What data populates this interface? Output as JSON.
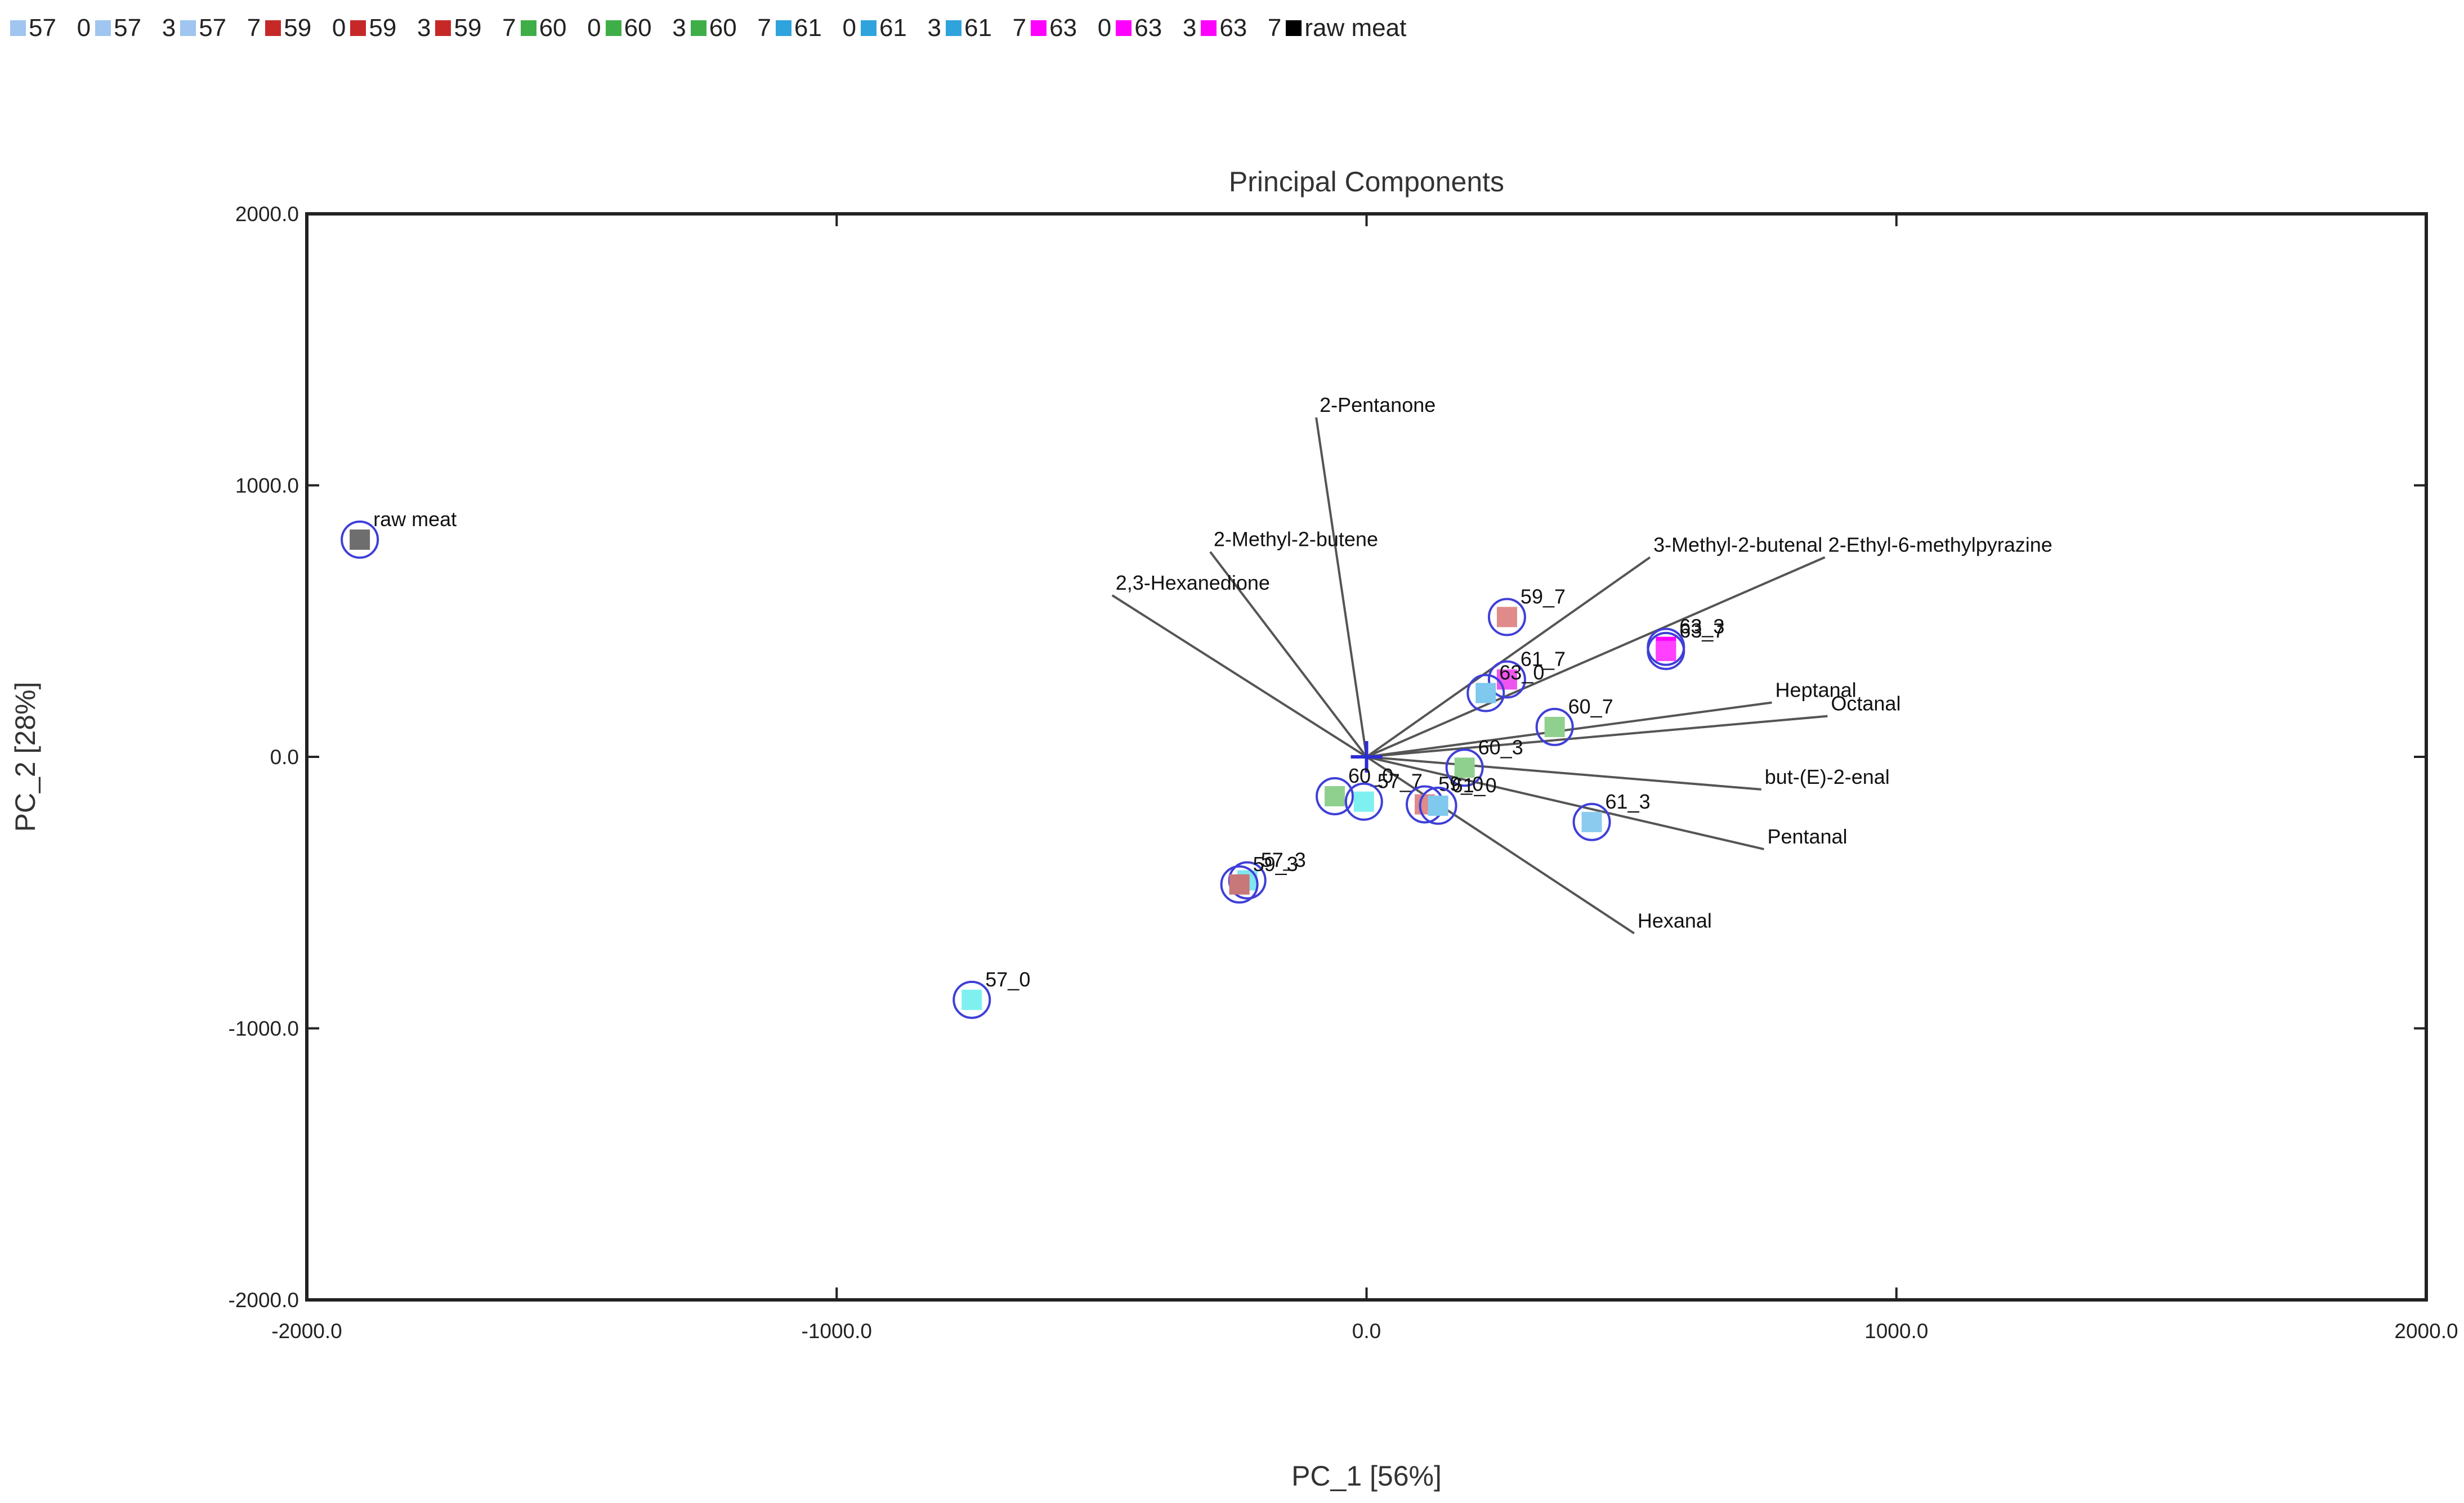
{
  "chart_data": {
    "type": "scatter",
    "title": "Principal Components",
    "xlabel": "PC_1 [56%]",
    "ylabel": "PC_2 [28%]",
    "xlim": [
      -2000,
      2000
    ],
    "ylim": [
      -2000,
      2000
    ],
    "xticks": [
      -2000,
      -1000,
      0,
      1000,
      2000
    ],
    "yticks": [
      -2000,
      -1000,
      0,
      1000,
      2000
    ],
    "xtick_labels": [
      "-2000.0",
      "-1000.0",
      "0.0",
      "1000.0",
      "2000.0"
    ],
    "ytick_labels": [
      "-2000.0",
      "-1000.0",
      "0.0",
      "1000.0",
      "2000.0"
    ],
    "legend": [
      {
        "label": "57   0",
        "color": "#9fc5f0"
      },
      {
        "label": "57   3",
        "color": "#9fc5f0"
      },
      {
        "label": "57   7",
        "color": "#9fc5f0"
      },
      {
        "label": "59   0",
        "color": "#c62828"
      },
      {
        "label": "59   3",
        "color": "#c62828"
      },
      {
        "label": "59   7",
        "color": "#c62828"
      },
      {
        "label": "60   0",
        "color": "#3fae49"
      },
      {
        "label": "60   3",
        "color": "#3fae49"
      },
      {
        "label": "60   7",
        "color": "#3fae49"
      },
      {
        "label": "61   0",
        "color": "#2fa3dc"
      },
      {
        "label": "61   3",
        "color": "#2fa3dc"
      },
      {
        "label": "61   7",
        "color": "#2fa3dc"
      },
      {
        "label": "63   0",
        "color": "#ff00ff"
      },
      {
        "label": "63   3",
        "color": "#ff00ff"
      },
      {
        "label": "63   7",
        "color": "#ff00ff"
      },
      {
        "label": "raw meat",
        "color": "#000000"
      }
    ],
    "scores": [
      {
        "label": "raw meat",
        "x": -1900,
        "y": 800,
        "color": "#6e6e6e"
      },
      {
        "label": "57_0",
        "x": -745,
        "y": -895,
        "color": "#7ff0f0"
      },
      {
        "label": "57_3",
        "x": -225,
        "y": -455,
        "color": "#7fe6f0"
      },
      {
        "label": "59_3",
        "x": -240,
        "y": -470,
        "color": "#c87878"
      },
      {
        "label": "59_7",
        "x": 265,
        "y": 515,
        "color": "#e08a8a"
      },
      {
        "label": "61_7",
        "x": 265,
        "y": 285,
        "color": "#ee55ee"
      },
      {
        "label": "63_0",
        "x": 225,
        "y": 235,
        "color": "#7fc8ee"
      },
      {
        "label": "63_3",
        "x": 565,
        "y": 405,
        "color": "#ff00ff"
      },
      {
        "label": "63_7",
        "x": 565,
        "y": 390,
        "color": "#ff40ff"
      },
      {
        "label": "60_7",
        "x": 355,
        "y": 110,
        "color": "#8fd08f"
      },
      {
        "label": "60_3",
        "x": 185,
        "y": -40,
        "color": "#8fd08f"
      },
      {
        "label": "60_0",
        "x": -60,
        "y": -145,
        "color": "#8fd08f"
      },
      {
        "label": "57_7",
        "x": -5,
        "y": -165,
        "color": "#7ff0f0"
      },
      {
        "label": "59_0",
        "x": 110,
        "y": -175,
        "color": "#e08a8a"
      },
      {
        "label": "61_0",
        "x": 135,
        "y": -180,
        "color": "#7fc8ee"
      },
      {
        "label": "61_3",
        "x": 425,
        "y": -240,
        "color": "#8ccbf0"
      }
    ],
    "loadings": [
      {
        "label": "2-Pentanone",
        "x": -95,
        "y": 1250
      },
      {
        "label": "2-Methyl-2-butene",
        "x": -295,
        "y": 755
      },
      {
        "label": "2,3-Hexanedione",
        "x": -480,
        "y": 595
      },
      {
        "label": "3-Methyl-2-butenal",
        "x": 535,
        "y": 735
      },
      {
        "label": "2-Ethyl-6-methylpyrazine",
        "x": 865,
        "y": 735
      },
      {
        "label": "Heptanal",
        "x": 765,
        "y": 200
      },
      {
        "label": "Octanal",
        "x": 870,
        "y": 150
      },
      {
        "label": "but-(E)-2-enal",
        "x": 745,
        "y": -120
      },
      {
        "label": "Pentanal",
        "x": 750,
        "y": -340
      },
      {
        "label": "Hexanal",
        "x": 505,
        "y": -650
      }
    ]
  }
}
